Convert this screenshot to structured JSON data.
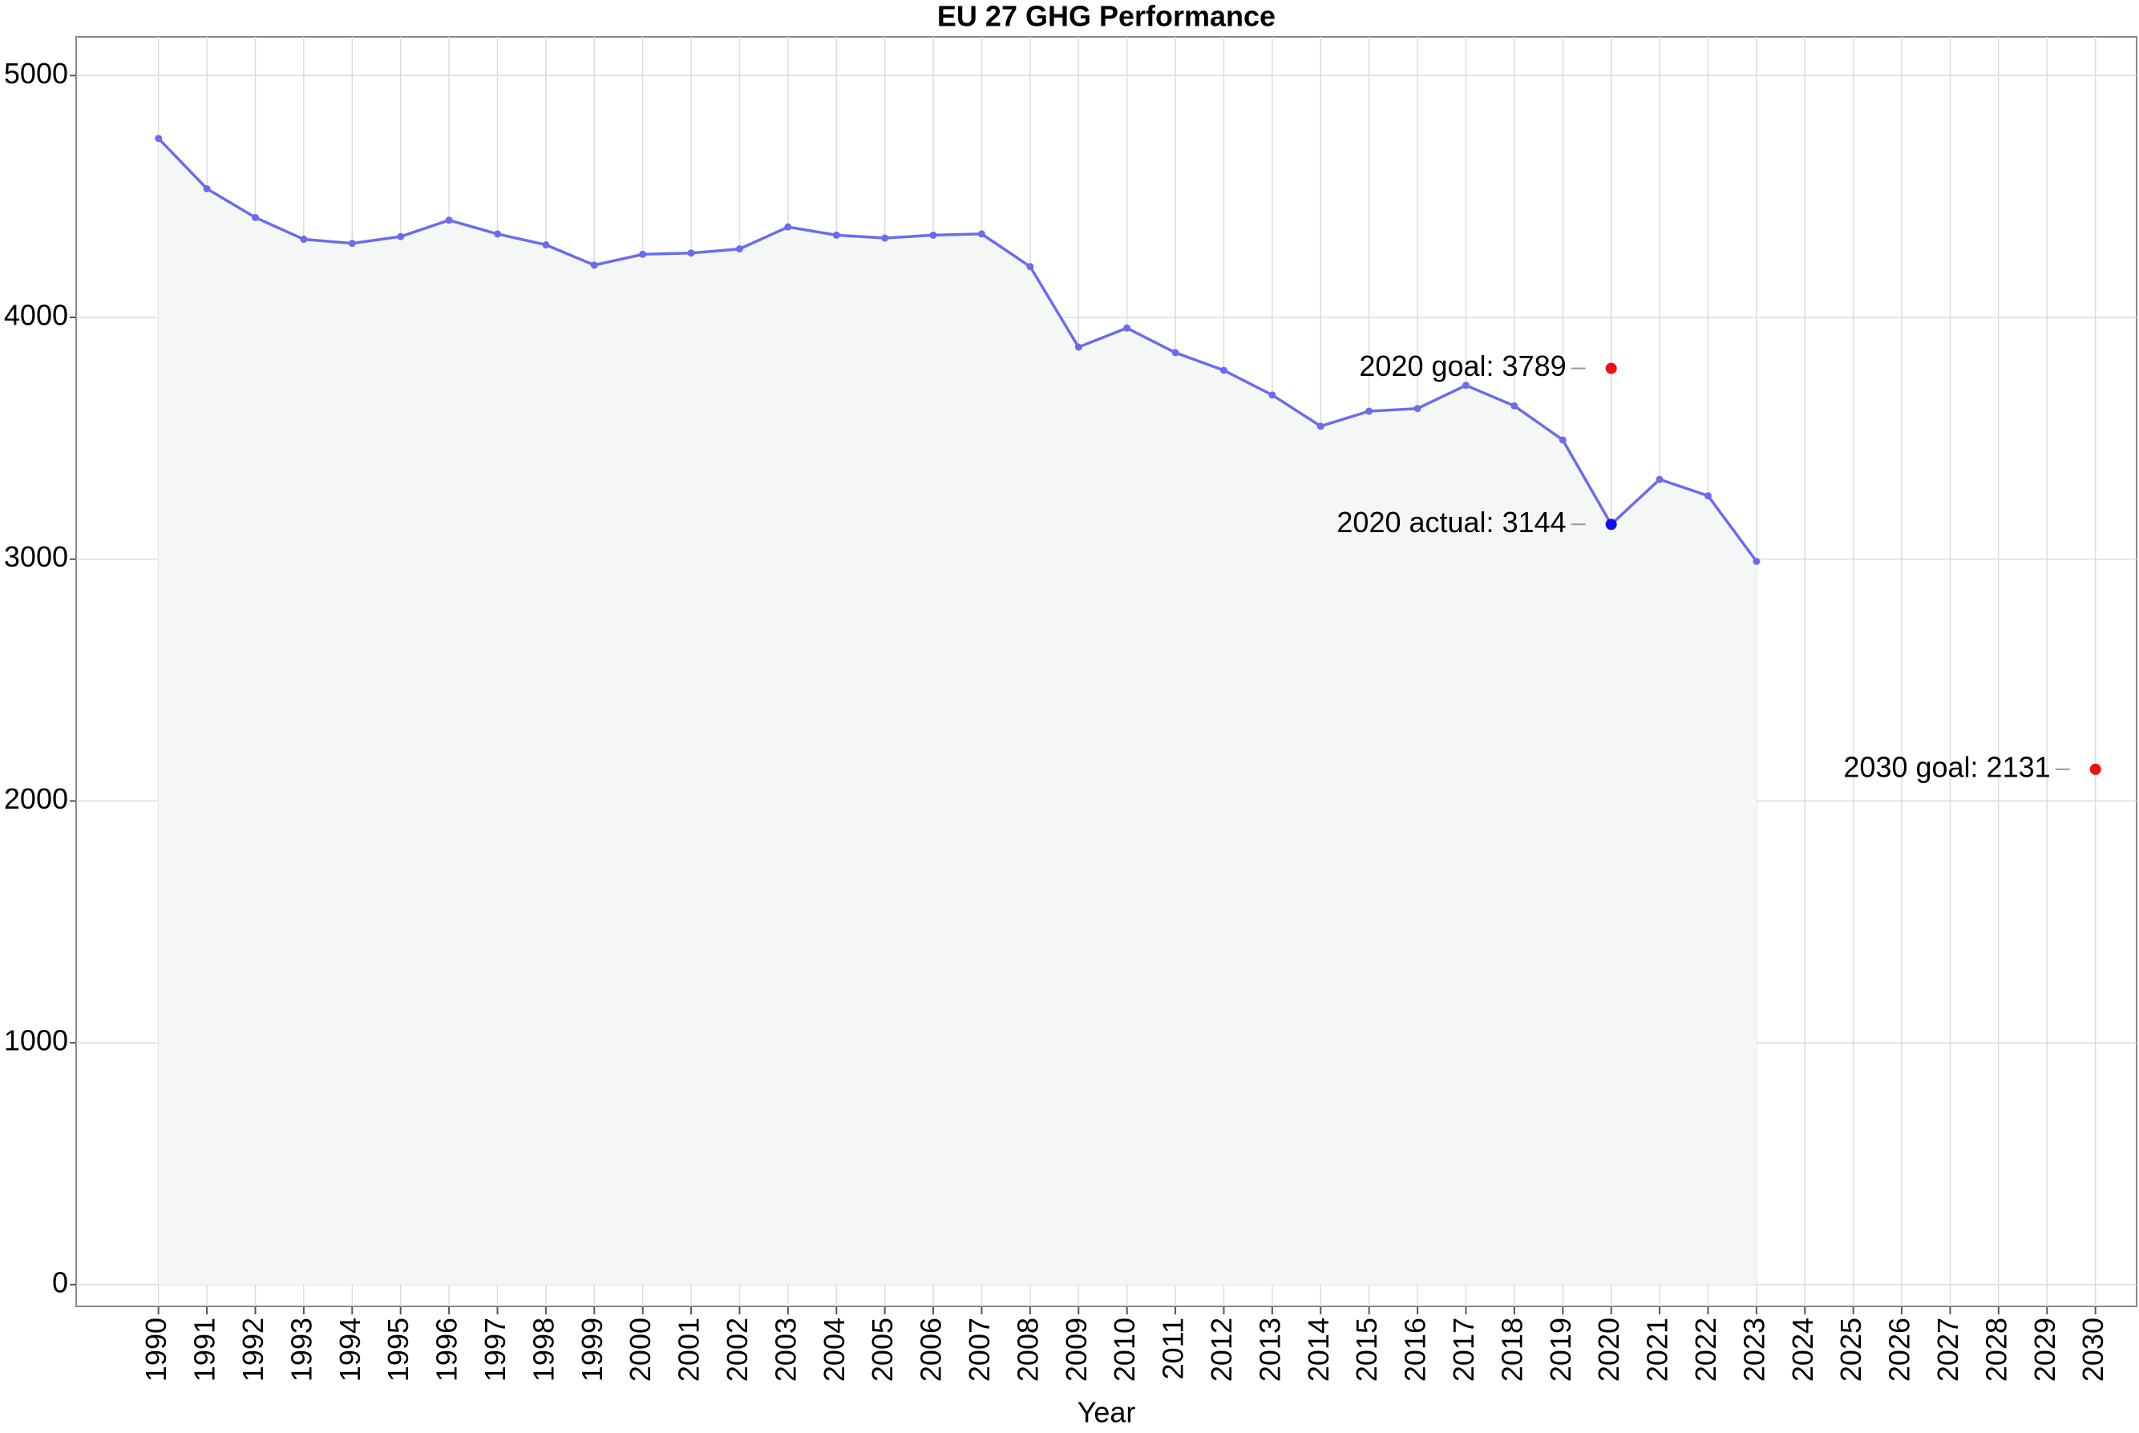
{
  "chart_data": {
    "type": "line",
    "title": "EU 27 GHG Performance",
    "x_label": "Year",
    "x": [
      1990,
      1991,
      1992,
      1993,
      1994,
      1995,
      1996,
      1997,
      1998,
      1999,
      2000,
      2001,
      2002,
      2003,
      2004,
      2005,
      2006,
      2007,
      2008,
      2009,
      2010,
      2011,
      2012,
      2013,
      2014,
      2015,
      2016,
      2017,
      2018,
      2019,
      2020,
      2021,
      2022,
      2023
    ],
    "series": [
      {
        "color": "#6b6bf0",
        "area_color": "#f5f7f6",
        "values": [
          4740,
          4532,
          4413,
          4323,
          4306,
          4334,
          4402,
          4345,
          4300,
          4216,
          4261,
          4266,
          4283,
          4374,
          4340,
          4328,
          4340,
          4345,
          4210,
          3877,
          3956,
          3854,
          3781,
          3679,
          3550,
          3612,
          3623,
          3719,
          3634,
          3493,
          3144,
          3330,
          3262,
          2991
        ]
      }
    ],
    "annotations": [
      {
        "label": "2020 goal: 3789",
        "x": 2020,
        "value": 3789,
        "color": "#ee1111"
      },
      {
        "label": "2020 actual: 3144",
        "x": 2020,
        "value": 3144,
        "color": "#1111ee"
      },
      {
        "label": "2030 goal: 2131",
        "x": 2030,
        "value": 2131,
        "color": "#ee1111"
      }
    ],
    "xlim": [
      1988.3,
      2030.85
    ],
    "ylim": [
      -90,
      5160
    ],
    "xticks": [
      1990,
      1991,
      1992,
      1993,
      1994,
      1995,
      1996,
      1997,
      1998,
      1999,
      2000,
      2001,
      2002,
      2003,
      2004,
      2005,
      2006,
      2007,
      2008,
      2009,
      2010,
      2011,
      2012,
      2013,
      2014,
      2015,
      2016,
      2017,
      2018,
      2019,
      2020,
      2021,
      2022,
      2023,
      2024,
      2025,
      2026,
      2027,
      2028,
      2029,
      2030
    ],
    "yticks": [
      0,
      1000,
      2000,
      3000,
      4000,
      5000
    ],
    "grid": true
  }
}
